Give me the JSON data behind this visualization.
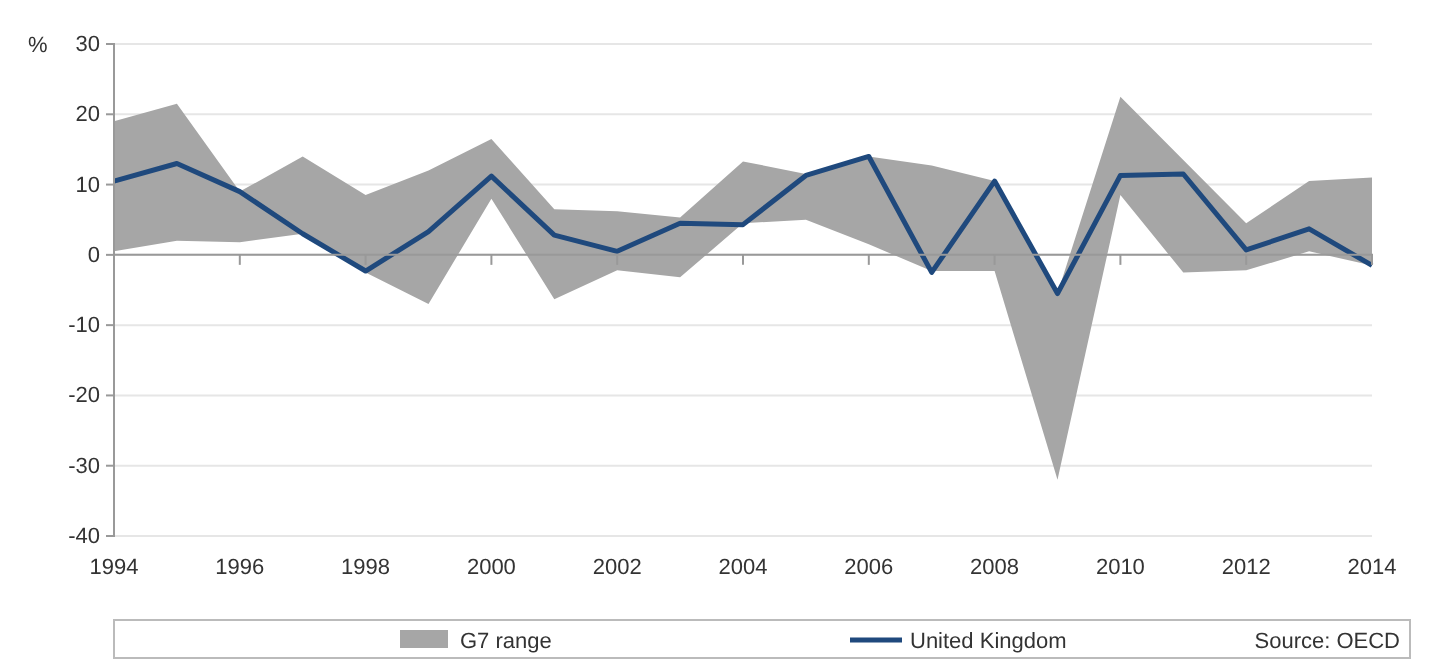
{
  "chart_data": {
    "type": "line",
    "ylabel": "%",
    "x": [
      1994,
      1995,
      1996,
      1997,
      1998,
      1999,
      2000,
      2001,
      2002,
      2003,
      2004,
      2005,
      2006,
      2007,
      2008,
      2009,
      2010,
      2011,
      2012,
      2013,
      2014
    ],
    "xlim": [
      1994,
      2014
    ],
    "xticks": [
      1994,
      1996,
      1998,
      2000,
      2002,
      2004,
      2006,
      2008,
      2010,
      2012,
      2014
    ],
    "ylim": [
      -40,
      30
    ],
    "yticks": [
      -40,
      -30,
      -20,
      -10,
      0,
      10,
      20,
      30
    ],
    "grid": "y",
    "legend": "bottom",
    "series": [
      {
        "name": "G7 range",
        "color": "#a6a6a6",
        "values": [
          null,
          null,
          null,
          null,
          null,
          null,
          null,
          null,
          null,
          null,
          null,
          null,
          null,
          null,
          null,
          null,
          null,
          null,
          null,
          null,
          null
        ],
        "lower": [
          0.5,
          2,
          1.8,
          3,
          -2.5,
          -7,
          8,
          -6.3,
          -2.2,
          -3.2,
          4.5,
          5,
          1.5,
          -2.3,
          -2.3,
          -32,
          8.5,
          -2.5,
          -2.2,
          0.5,
          -1.5
        ],
        "upper": [
          19,
          21.5,
          9,
          14,
          8.5,
          12,
          16.5,
          6.5,
          6.2,
          5.3,
          13.3,
          11.5,
          14,
          12.7,
          10.5,
          -5.5,
          22.5,
          13.5,
          4.5,
          10.5,
          11
        ]
      },
      {
        "name": "United Kingdom",
        "color": "#1f497d",
        "values": [
          10.5,
          13,
          9,
          3,
          -2.3,
          3.3,
          11.2,
          2.8,
          0.5,
          4.5,
          4.3,
          11.3,
          14,
          -2.5,
          10.5,
          -5.5,
          11.3,
          11.5,
          0.7,
          3.7,
          -1.5
        ]
      }
    ],
    "annotations": [
      "Source: OECD"
    ]
  }
}
